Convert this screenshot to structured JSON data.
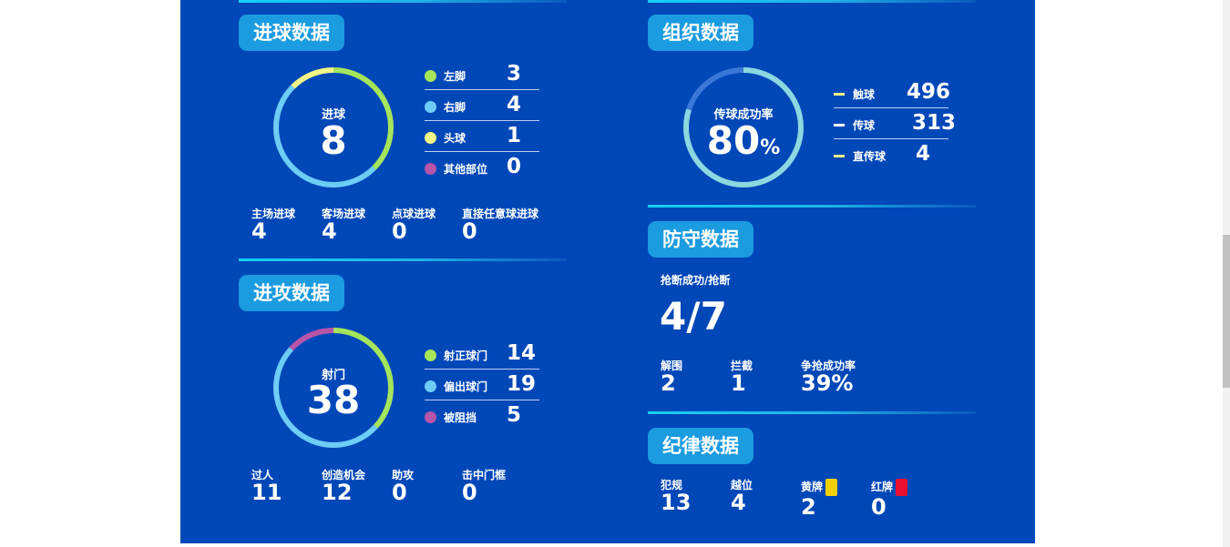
{
  "colors": {
    "panel_bg": "#0047b8",
    "title_bg": "#1b9be0",
    "green": "#a4e55c",
    "light_blue": "#6ecdf5",
    "yellow": "#f1f586",
    "purple": "#b855a8",
    "yellow_card": "#f4d000",
    "red_card": "#e8102e"
  },
  "goals": {
    "title": "进球数据",
    "ring_label": "进球",
    "ring_value": "8",
    "legend": [
      {
        "label": "左脚",
        "value": "3",
        "color": "#a4e55c"
      },
      {
        "label": "右脚",
        "value": "4",
        "color": "#6ecdf5"
      },
      {
        "label": "头球",
        "value": "1",
        "color": "#f1f586"
      },
      {
        "label": "其他部位",
        "value": "0",
        "color": "#b855a8"
      }
    ],
    "stats": [
      {
        "label": "主场进球",
        "value": "4"
      },
      {
        "label": "客场进球",
        "value": "4"
      },
      {
        "label": "点球进球",
        "value": "0"
      },
      {
        "label": "直接任意球进球",
        "value": "0"
      }
    ]
  },
  "attack": {
    "title": "进攻数据",
    "ring_label": "射门",
    "ring_value": "38",
    "legend": [
      {
        "label": "射正球门",
        "value": "14",
        "color": "#a4e55c"
      },
      {
        "label": "偏出球门",
        "value": "19",
        "color": "#6ecdf5"
      },
      {
        "label": "被阻挡",
        "value": "5",
        "color": "#b855a8"
      }
    ],
    "stats": [
      {
        "label": "过人",
        "value": "11"
      },
      {
        "label": "创造机会",
        "value": "12"
      },
      {
        "label": "助攻",
        "value": "0"
      },
      {
        "label": "击中门框",
        "value": "0"
      }
    ]
  },
  "organization": {
    "title": "组织数据",
    "ring_label": "传球成功率",
    "ring_value": "80",
    "ring_unit": "%",
    "pass_success_rate": 0.8,
    "legend": [
      {
        "label": "触球",
        "value": "496",
        "color": "#f1f586"
      },
      {
        "label": "传球",
        "value": "313",
        "color": "#ffffff"
      },
      {
        "label": "直传球",
        "value": "4",
        "color": "#f1f586"
      }
    ]
  },
  "defense": {
    "title": "防守数据",
    "tackle_label": "抢断成功/抢断",
    "tackle_value": "4/7",
    "stats": [
      {
        "label": "解围",
        "value": "2"
      },
      {
        "label": "拦截",
        "value": "1"
      },
      {
        "label": "争抢成功率",
        "value": "39%"
      }
    ]
  },
  "discipline": {
    "title": "纪律数据",
    "stats": [
      {
        "label": "犯规",
        "value": "13"
      },
      {
        "label": "越位",
        "value": "4"
      },
      {
        "label": "黄牌",
        "value": "2",
        "card": "yellow-card-icon"
      },
      {
        "label": "红牌",
        "value": "0",
        "card": "red-card-icon"
      }
    ]
  }
}
